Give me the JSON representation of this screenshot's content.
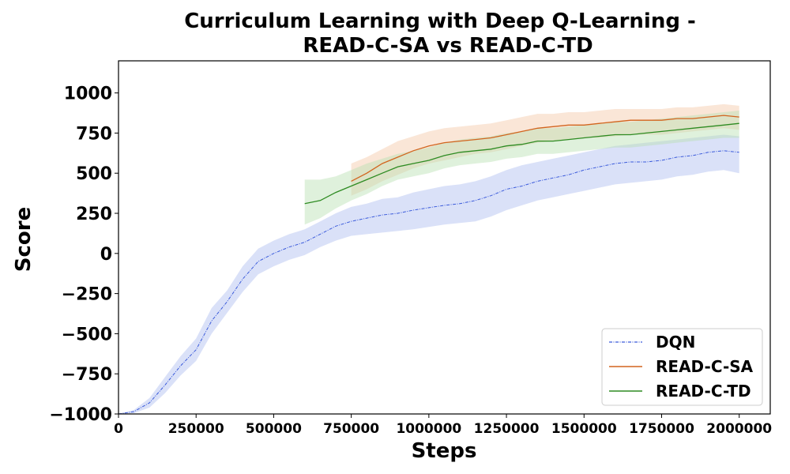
{
  "chart_data": {
    "type": "line",
    "title": "Curriculum Learning with Deep Q-Learning - READ-C-SA vs READ-C-TD",
    "title_lines": [
      "Curriculum Learning with Deep Q-Learning -",
      "READ-C-SA vs READ-C-TD"
    ],
    "xlabel": "Steps",
    "ylabel": "Score",
    "xlim": [
      0,
      2100000
    ],
    "ylim": [
      -1000,
      1200
    ],
    "x_ticks": [
      0,
      250000,
      500000,
      750000,
      1000000,
      1250000,
      1500000,
      1750000,
      2000000
    ],
    "x_tick_labels": [
      "0",
      "250000",
      "500000",
      "750000",
      "1000000",
      "1250000",
      "1500000",
      "1750000",
      "2000000"
    ],
    "y_ticks": [
      -1000,
      -750,
      -500,
      -250,
      0,
      250,
      500,
      750,
      1000
    ],
    "y_tick_labels": [
      "−1000",
      "−750",
      "−500",
      "−250",
      "0",
      "250",
      "500",
      "750",
      "1000"
    ],
    "grid": false,
    "legend_position": "bottom-right",
    "series": [
      {
        "name": "DQN",
        "color": "#3b5bdb",
        "band_color": "#aebdf0",
        "style": "dash-dot",
        "x": [
          0,
          50000,
          100000,
          150000,
          200000,
          250000,
          300000,
          350000,
          400000,
          450000,
          500000,
          550000,
          600000,
          650000,
          700000,
          750000,
          800000,
          850000,
          900000,
          950000,
          1000000,
          1050000,
          1100000,
          1150000,
          1200000,
          1250000,
          1300000,
          1350000,
          1400000,
          1450000,
          1500000,
          1550000,
          1600000,
          1650000,
          1700000,
          1750000,
          1800000,
          1850000,
          1900000,
          1950000,
          2000000
        ],
        "y": [
          -1000,
          -985,
          -930,
          -820,
          -700,
          -600,
          -420,
          -300,
          -160,
          -50,
          0,
          40,
          70,
          120,
          170,
          200,
          220,
          240,
          250,
          270,
          285,
          300,
          310,
          330,
          360,
          400,
          420,
          450,
          470,
          490,
          520,
          540,
          560,
          570,
          570,
          580,
          600,
          610,
          630,
          640,
          630
        ],
        "lower": [
          -1000,
          -995,
          -960,
          -870,
          -760,
          -670,
          -500,
          -370,
          -240,
          -130,
          -80,
          -40,
          -10,
          40,
          80,
          110,
          120,
          130,
          140,
          150,
          165,
          180,
          190,
          200,
          230,
          270,
          300,
          330,
          350,
          370,
          390,
          410,
          430,
          440,
          450,
          460,
          480,
          490,
          510,
          520,
          500
        ],
        "upper": [
          -1000,
          -975,
          -900,
          -770,
          -640,
          -530,
          -340,
          -230,
          -80,
          30,
          80,
          120,
          150,
          200,
          250,
          290,
          310,
          340,
          350,
          380,
          400,
          420,
          430,
          450,
          480,
          520,
          550,
          570,
          590,
          610,
          630,
          650,
          670,
          680,
          690,
          700,
          710,
          720,
          730,
          740,
          730
        ]
      },
      {
        "name": "READ-C-SA",
        "color": "#d2641e",
        "band_color": "#f3c7a7",
        "style": "solid",
        "x": [
          750000,
          800000,
          850000,
          900000,
          950000,
          1000000,
          1050000,
          1100000,
          1150000,
          1200000,
          1250000,
          1300000,
          1350000,
          1400000,
          1450000,
          1500000,
          1550000,
          1600000,
          1650000,
          1700000,
          1750000,
          1800000,
          1850000,
          1900000,
          1950000,
          2000000
        ],
        "y": [
          450,
          500,
          560,
          600,
          640,
          670,
          690,
          700,
          710,
          720,
          740,
          760,
          780,
          790,
          800,
          800,
          810,
          820,
          830,
          830,
          830,
          840,
          840,
          850,
          860,
          850
        ],
        "lower": [
          360,
          400,
          450,
          490,
          530,
          560,
          580,
          600,
          620,
          630,
          650,
          670,
          690,
          700,
          710,
          720,
          720,
          730,
          740,
          740,
          740,
          750,
          760,
          770,
          780,
          770
        ],
        "upper": [
          560,
          600,
          650,
          700,
          730,
          760,
          780,
          790,
          800,
          810,
          830,
          850,
          870,
          870,
          880,
          880,
          890,
          900,
          900,
          900,
          900,
          910,
          910,
          920,
          930,
          920
        ]
      },
      {
        "name": "READ-C-TD",
        "color": "#2e8b22",
        "band_color": "#b9dfb1",
        "style": "solid",
        "x": [
          600000,
          650000,
          700000,
          750000,
          800000,
          850000,
          900000,
          950000,
          1000000,
          1050000,
          1100000,
          1150000,
          1200000,
          1250000,
          1300000,
          1350000,
          1400000,
          1450000,
          1500000,
          1550000,
          1600000,
          1650000,
          1700000,
          1750000,
          1800000,
          1850000,
          1900000,
          1950000,
          2000000
        ],
        "y": [
          310,
          330,
          380,
          420,
          460,
          500,
          540,
          560,
          580,
          610,
          630,
          640,
          650,
          670,
          680,
          700,
          700,
          710,
          720,
          730,
          740,
          740,
          750,
          760,
          770,
          780,
          790,
          800,
          810
        ],
        "lower": [
          180,
          220,
          280,
          330,
          370,
          420,
          460,
          480,
          500,
          530,
          550,
          560,
          570,
          590,
          600,
          620,
          620,
          630,
          640,
          650,
          660,
          660,
          670,
          680,
          690,
          700,
          710,
          720,
          720
        ],
        "upper": [
          460,
          460,
          480,
          520,
          560,
          590,
          620,
          640,
          660,
          690,
          710,
          720,
          730,
          750,
          760,
          780,
          780,
          790,
          800,
          810,
          820,
          820,
          830,
          840,
          850,
          860,
          870,
          880,
          890
        ]
      }
    ]
  }
}
